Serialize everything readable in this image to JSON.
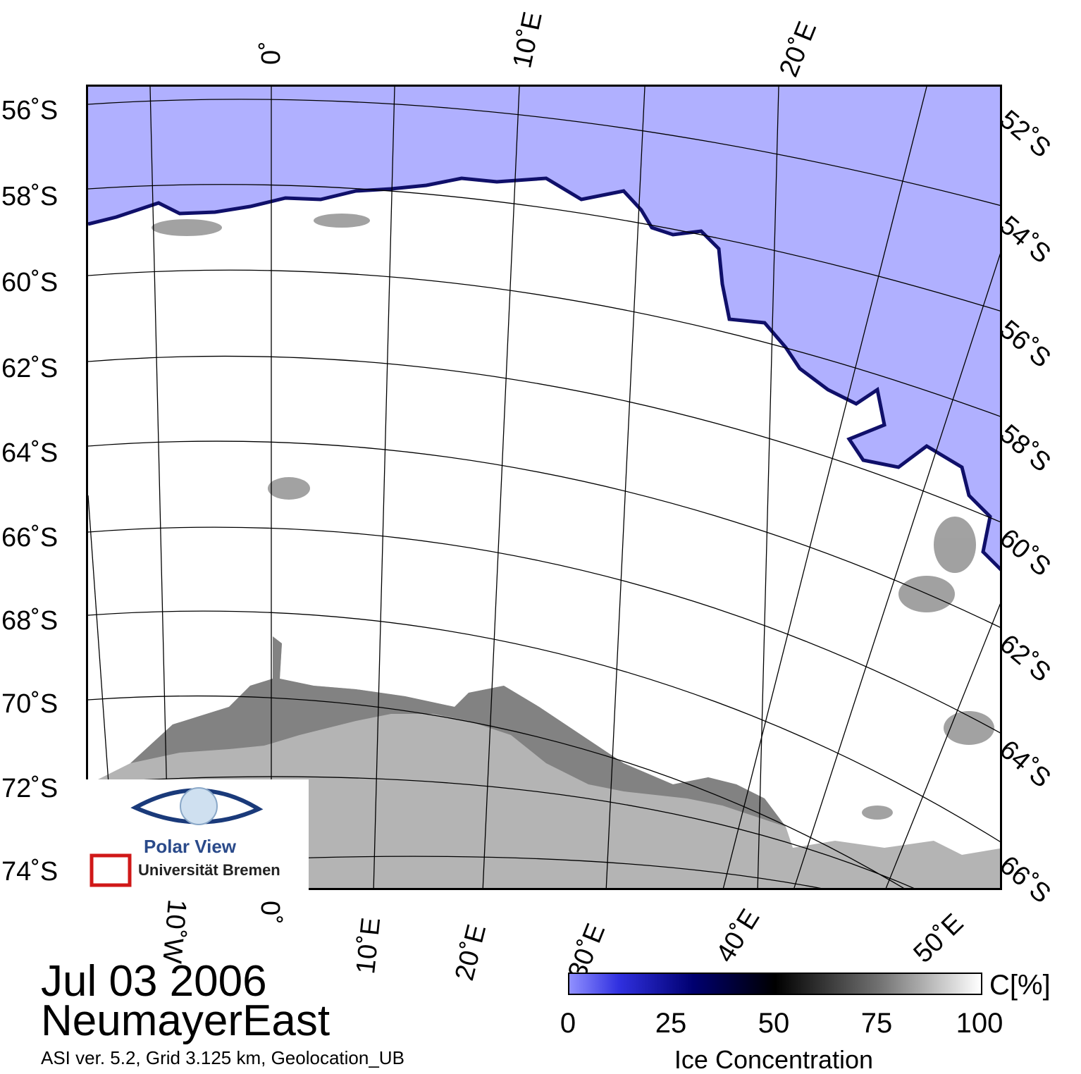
{
  "map": {
    "date": "Jul 03 2006",
    "region": "NeumayerEast",
    "info": "ASI ver. 5.2,  Grid 3.125 km, Geolocation_UB",
    "lat_labels_left": [
      "56˚S",
      "58˚S",
      "60˚S",
      "62˚S",
      "64˚S",
      "66˚S",
      "68˚S",
      "70˚S",
      "72˚S",
      "74˚S"
    ],
    "lat_labels_right": [
      "52˚S",
      "54˚S",
      "56˚S",
      "58˚S",
      "60˚S",
      "62˚S",
      "64˚S",
      "66˚S"
    ],
    "lon_labels_top": [
      "0˚",
      "10˚E",
      "20˚E"
    ],
    "lon_labels_bottom": [
      "10˚W",
      "0˚",
      "10˚E",
      "20˚E",
      "30˚E",
      "40˚E",
      "50˚E"
    ],
    "colors": {
      "open_water": "#b0b0ff",
      "ice": "#ffffff",
      "land": "#b4b4b4",
      "ice_shelf": "#828282"
    }
  },
  "colorbar": {
    "ticks": [
      "0",
      "25",
      "50",
      "75",
      "100"
    ],
    "unit": "C[%]",
    "title": "Ice Concentration"
  },
  "logo": {
    "name": "Polar View",
    "institution": "Universität Bremen"
  }
}
